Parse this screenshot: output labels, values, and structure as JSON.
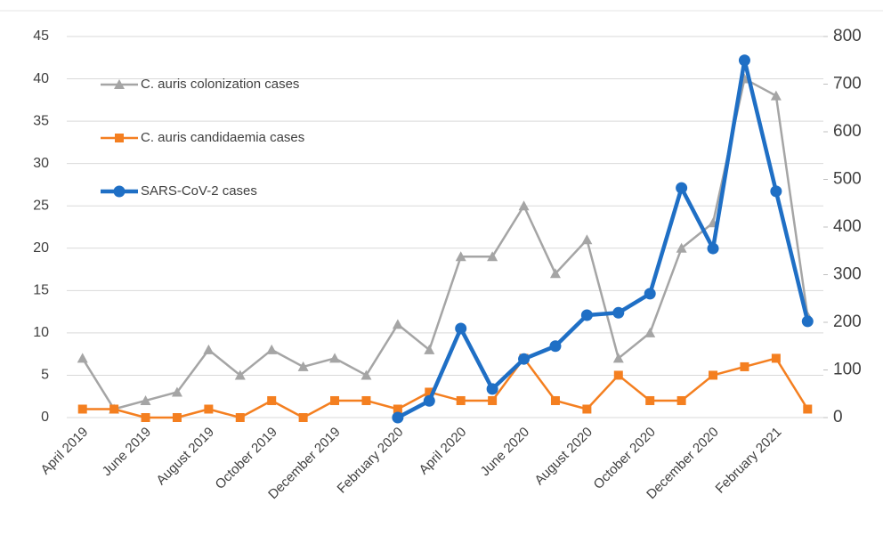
{
  "chart_data": {
    "type": "line",
    "categories": [
      "April 2019",
      null,
      "June 2019",
      null,
      "August 2019",
      null,
      "October 2019",
      null,
      "December 2019",
      null,
      "February 2020",
      null,
      "April 2020",
      null,
      "June 2020",
      null,
      "August 2020",
      null,
      "October 2020",
      null,
      "December 2020",
      null,
      "February 2021",
      null
    ],
    "series": [
      {
        "name": "C. auris colonization cases",
        "color": "#a5a5a5",
        "marker": "triangle",
        "values": [
          7,
          1,
          2,
          3,
          8,
          5,
          8,
          6,
          7,
          5,
          11,
          8,
          19,
          19,
          25,
          17,
          21,
          7,
          10,
          20,
          23,
          40,
          38,
          12
        ]
      },
      {
        "name": "C. auris candidaemia cases",
        "color": "#f47f20",
        "marker": "square",
        "values": [
          1,
          1,
          0,
          0,
          1,
          0,
          2,
          0,
          2,
          2,
          1,
          3,
          2,
          2,
          7,
          2,
          1,
          5,
          2,
          2,
          5,
          6,
          7,
          1
        ]
      },
      {
        "name": "SARS-CoV-2 cases",
        "color": "#1f6fc5",
        "marker": "circle",
        "axis": "y2",
        "values": [
          null,
          null,
          null,
          null,
          null,
          null,
          null,
          null,
          null,
          null,
          0,
          35,
          187,
          60,
          123,
          150,
          215,
          220,
          260,
          482,
          355,
          750,
          475,
          202
        ]
      }
    ],
    "ylim": [
      0,
      45
    ],
    "yticks": [
      0,
      5,
      10,
      15,
      20,
      25,
      30,
      35,
      40,
      45
    ],
    "y2lim": [
      0,
      800
    ],
    "y2ticks": [
      0,
      100,
      200,
      300,
      400,
      500,
      600,
      700,
      800
    ],
    "grid": true,
    "legend": "upper left"
  }
}
